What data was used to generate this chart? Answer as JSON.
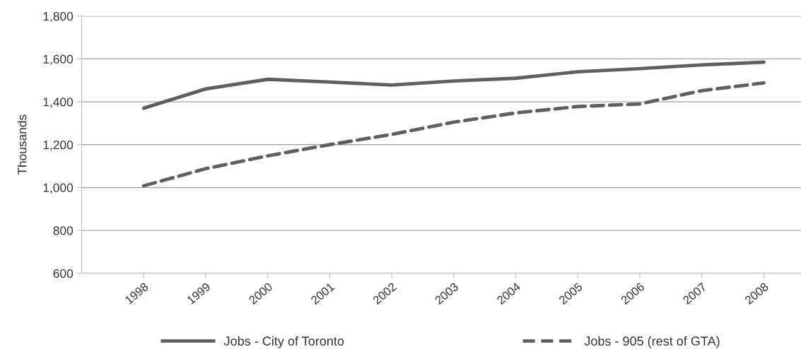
{
  "chart_data": {
    "type": "line",
    "ylabel": "Thousands",
    "categories": [
      "1998",
      "1999",
      "2000",
      "2001",
      "2002",
      "2003",
      "2004",
      "2005",
      "2006",
      "2007",
      "2008"
    ],
    "series": [
      {
        "name": "Jobs - City of Toronto",
        "color": "#5f5f5f",
        "line_style": "solid",
        "values": [
          1370,
          1460,
          1505,
          1492,
          1478,
          1497,
          1510,
          1540,
          1555,
          1572,
          1585
        ]
      },
      {
        "name": "Jobs - 905 (rest of GTA)",
        "color": "#5f5f5f",
        "line_style": "dashed",
        "values": [
          1008,
          1088,
          1148,
          1200,
          1248,
          1305,
          1348,
          1378,
          1390,
          1452,
          1488
        ]
      }
    ],
    "ylim": [
      600,
      1800
    ],
    "yticks": [
      {
        "value": 600,
        "label": "600"
      },
      {
        "value": 800,
        "label": "800"
      },
      {
        "value": 1000,
        "label": "1,000"
      },
      {
        "value": 1200,
        "label": "1,200"
      },
      {
        "value": 1400,
        "label": "1,400"
      },
      {
        "value": 1600,
        "label": "1,600"
      },
      {
        "value": 1800,
        "label": "1,800"
      }
    ],
    "grid": "y",
    "legend": "bottom",
    "marker": "none"
  }
}
